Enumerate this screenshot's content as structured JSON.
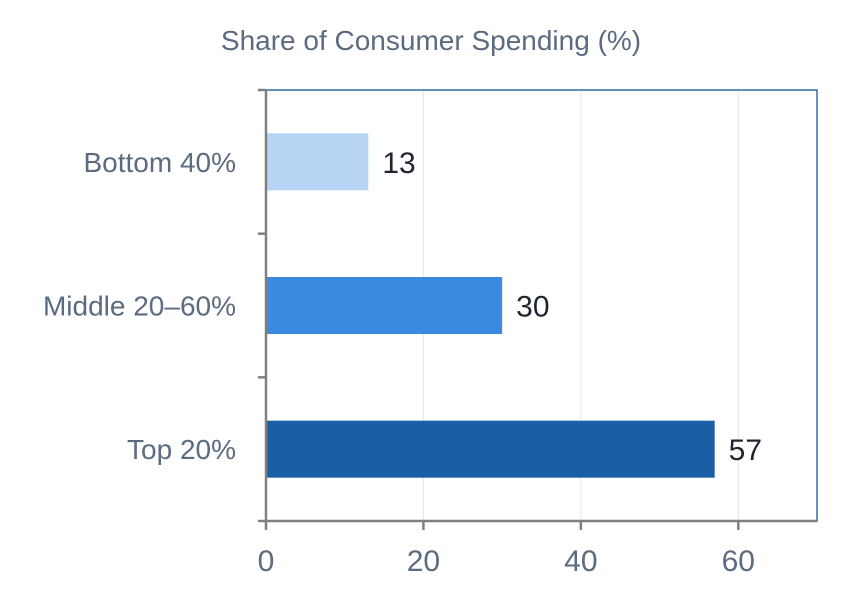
{
  "chart_data": {
    "type": "bar",
    "orientation": "horizontal",
    "title": "Share of Consumer Spending (%)",
    "xlabel": "",
    "ylabel": "",
    "categories": [
      "Bottom 40%",
      "Middle 20–60%",
      "Top 20%"
    ],
    "values": [
      13,
      30,
      57
    ],
    "data_labels": [
      "13",
      "30",
      "57"
    ],
    "bar_colors": [
      "#b8d4f4",
      "#3a8be0",
      "#1a5fa6"
    ],
    "xlim": [
      0,
      70
    ],
    "x_ticks": [
      0,
      20,
      40,
      60
    ],
    "x_tick_labels": [
      "0",
      "20",
      "40",
      "60"
    ],
    "grid": "vertical",
    "legend": "none"
  },
  "colors": {
    "title_text": "#5b6b80",
    "axis": "#808080",
    "frame": "#2f6fa8",
    "grid": "#e6e6e6",
    "data_label": "#1f2530"
  }
}
